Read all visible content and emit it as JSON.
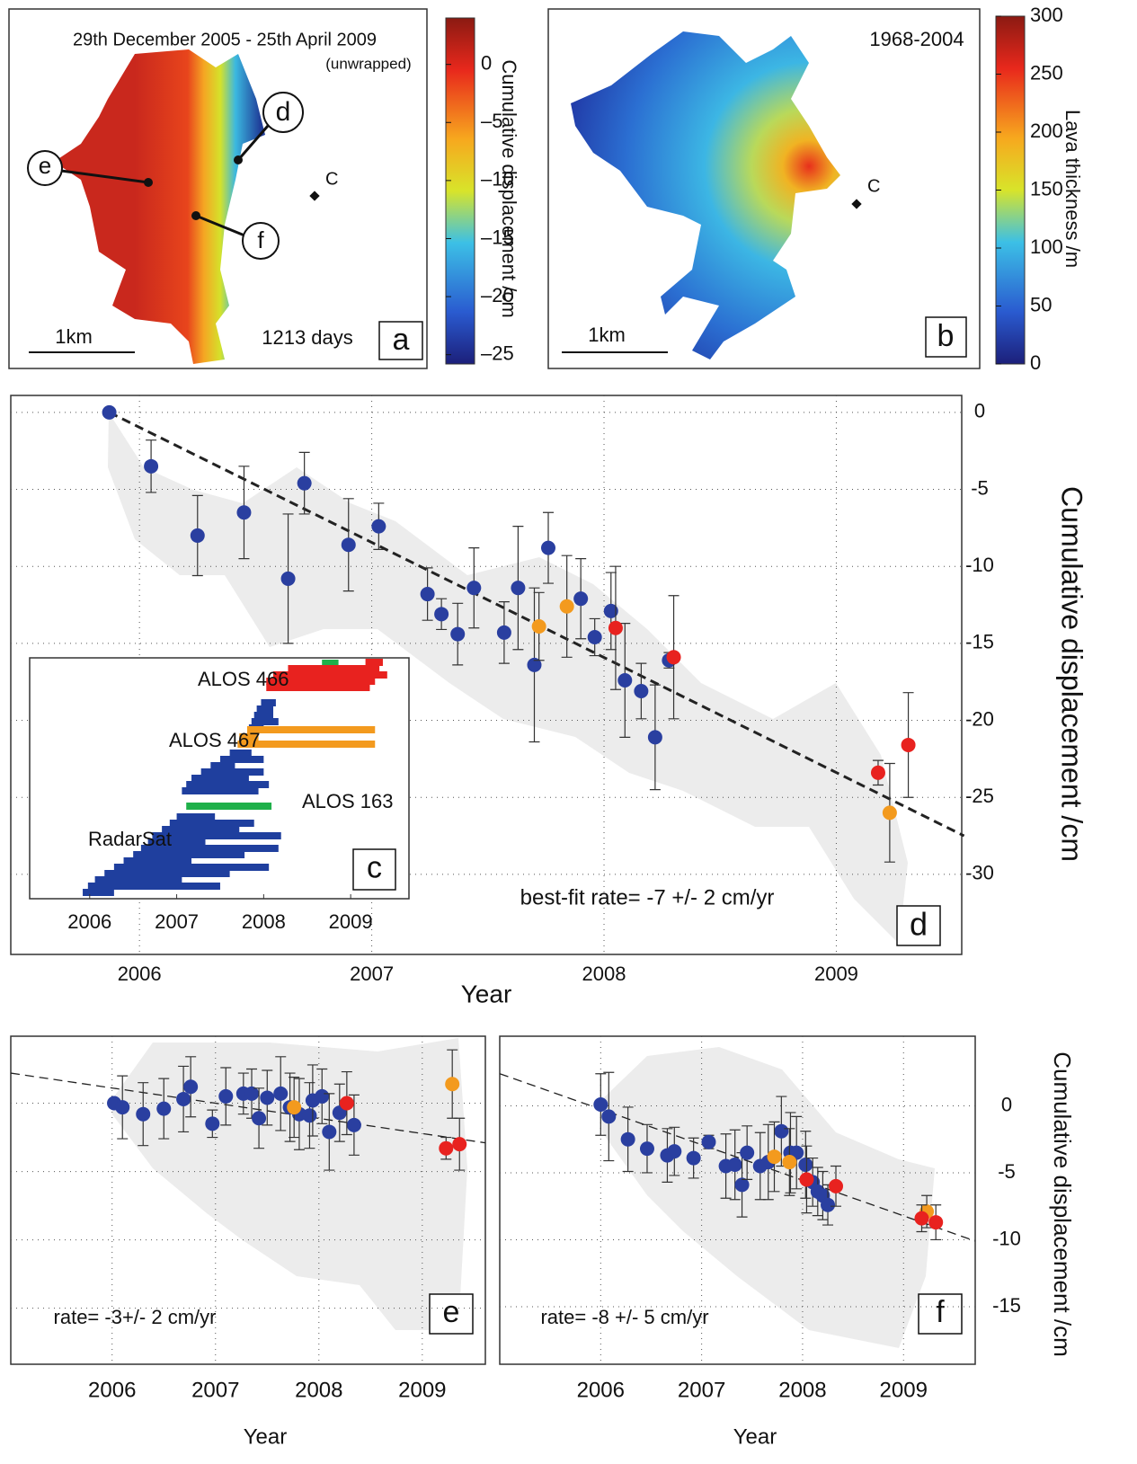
{
  "chart_data": [
    {
      "type": "map",
      "panel": "a",
      "title": "29th December 2005 -  25th April 2009",
      "subtitle": "(unwrapped)",
      "annotation": "1213 days",
      "scale_bar": "1km",
      "point_label": "C",
      "markers": [
        "d",
        "e",
        "f"
      ],
      "colorbar": {
        "label": "Cumulative displacement /cm",
        "lim": [
          -25.8,
          4
        ],
        "colormap": "jet",
        "ticks": [
          0,
          {
            "value": -5,
            "label": "–5"
          },
          {
            "value": -10,
            "label": "–10"
          },
          {
            "value": -15,
            "label": "–15"
          },
          {
            "value": -20,
            "label": "–20"
          },
          {
            "value": -25,
            "label": "–25"
          }
        ]
      }
    },
    {
      "type": "map",
      "panel": "b",
      "title": "1968-2004",
      "scale_bar": "1km",
      "point_label": "C",
      "colorbar": {
        "label": "Lava thickness /m",
        "lim": [
          0,
          300
        ],
        "colormap": "jet",
        "ticks": [
          0,
          50,
          100,
          150,
          200,
          250,
          300
        ]
      }
    },
    {
      "type": "timeline",
      "panel": "c",
      "xlim": [
        2005.31,
        2009.67
      ],
      "xticks": [
        2006,
        2007,
        2008,
        2009
      ],
      "series": [
        {
          "name": "RadarSat",
          "color": "#1f3f9e",
          "start": [
            2005.92,
            2005.98,
            2006.06,
            2006.17,
            2006.28,
            2006.39,
            2006.5,
            2006.59,
            2006.67,
            2006.72,
            2006.83,
            2006.92,
            2007.0,
            2007.06,
            2007.11,
            2007.17,
            2007.28,
            2007.39,
            2007.5,
            2007.61,
            2007.83,
            2007.86,
            2007.89,
            2007.92,
            2007.97
          ],
          "end": [
            2006.28,
            2007.5,
            2007.06,
            2007.61,
            2008.06,
            2007.17,
            2007.78,
            2008.17,
            2007.33,
            2008.2,
            2007.72,
            2007.89,
            2007.44,
            2007.94,
            2008.06,
            2007.83,
            2008.0,
            2007.67,
            2008.0,
            2007.86,
            2008.0,
            2008.17,
            2008.11,
            2008.11,
            2008.14
          ]
        },
        {
          "name": "ALOS 163",
          "color": "#1fb04a",
          "start": [
            2007.11,
            2008.67
          ],
          "end": [
            2008.09,
            2008.86
          ]
        },
        {
          "name": "ALOS 467",
          "color": "#f39a1e",
          "start": [
            2007.81,
            2007.72,
            2007.7
          ],
          "end": [
            2009.28,
            2007.94,
            2009.28
          ]
        },
        {
          "name": "ALOS 466",
          "color": "#e8221f",
          "start": [
            2009.17,
            2008.28,
            2008.11,
            2008.03,
            2008.03
          ],
          "end": [
            2009.37,
            2009.33,
            2009.42,
            2009.28,
            2009.22
          ]
        }
      ]
    },
    {
      "type": "errorbar",
      "panel": "d",
      "xlabel": "Year",
      "ylabel": "Cumulative displacement /cm",
      "annotation": "best-fit rate= -7 +/- 2  cm/yr",
      "xlim": [
        2005.446,
        2009.54
      ],
      "ylim": [
        -35.2,
        1.1
      ],
      "xticks": [
        2006,
        2007,
        2008,
        2009
      ],
      "yticks": [
        0,
        -5,
        -10,
        -15,
        -20,
        -25,
        -30
      ],
      "grid": true,
      "ytick_labels": true,
      "fit": {
        "x": [
          2005.87,
          2009.55
        ],
        "values": [
          0,
          -27.5
        ]
      },
      "series": [
        {
          "color": "#2a3fa0",
          "x": [
            2005.87,
            2006.05,
            2006.25,
            2006.45,
            2006.64,
            2006.71,
            2006.9,
            2007.03,
            2007.24,
            2007.3,
            2007.37,
            2007.44,
            2007.57,
            2007.63,
            2007.7,
            2007.76,
            2007.9,
            2007.96,
            2008.03,
            2008.09,
            2008.16,
            2008.22,
            2008.28
          ],
          "values": [
            0,
            -3.5,
            -8,
            -6.5,
            -10.8,
            -4.6,
            -8.6,
            -7.4,
            -11.8,
            -13.1,
            -14.4,
            -11.4,
            -14.3,
            -11.4,
            -16.4,
            -8.8,
            -12.1,
            -14.6,
            -12.9,
            -17.4,
            -18.1,
            -21.1,
            -16.1
          ],
          "errors": [
            0,
            1.7,
            2.6,
            3,
            4.2,
            2,
            3,
            1.5,
            1.7,
            1,
            2,
            2.6,
            2,
            4,
            5,
            2.3,
            2.6,
            1.2,
            2.5,
            3.7,
            1.8,
            3.4,
            0.5
          ]
        },
        {
          "color": "#f39a1e",
          "x": [
            2007.72,
            2007.84,
            2009.23
          ],
          "values": [
            -13.9,
            -12.6,
            -26
          ],
          "errors": [
            2.2,
            3.3,
            3.2
          ]
        },
        {
          "color": "#e8221f",
          "x": [
            2008.05,
            2008.3,
            2009.18,
            2009.31
          ],
          "values": [
            -14,
            -15.9,
            -23.4,
            -21.6
          ],
          "errors": [
            4,
            4,
            0.8,
            3.4
          ]
        }
      ]
    },
    {
      "type": "errorbar",
      "panel": "e",
      "xlabel": "Year",
      "annotation": "rate= -3+/- 2 cm/yr",
      "xlim": [
        2005.02,
        2009.61
      ],
      "ylim": [
        -19.1,
        4.9
      ],
      "xticks": [
        2006,
        2007,
        2008,
        2009
      ],
      "yticks": [
        0,
        -5,
        -10,
        -15
      ],
      "grid": true,
      "ytick_labels": false,
      "fit": {
        "x": [
          2005.02,
          2009.61
        ],
        "values": [
          2.2,
          -2.9
        ]
      },
      "series": [
        {
          "color": "#2a3fa0",
          "x": [
            2006.02,
            2006.1,
            2006.3,
            2006.5,
            2006.69,
            2006.76,
            2006.97,
            2007.1,
            2007.27,
            2007.35,
            2007.42,
            2007.5,
            2007.63,
            2007.72,
            2007.81,
            2007.91,
            2007.94,
            2008.03,
            2008.1,
            2008.2,
            2008.34
          ],
          "values": [
            0,
            -0.3,
            -0.8,
            -0.4,
            0.3,
            1.2,
            -1.5,
            0.5,
            0.7,
            0.7,
            -1.1,
            0.4,
            0.7,
            -0.3,
            -0.8,
            -0.9,
            0.2,
            0.5,
            -2.1,
            -0.7,
            -1.6
          ],
          "errors": [
            0.3,
            2.3,
            2.3,
            2.2,
            2.4,
            2.2,
            1,
            2.1,
            1.5,
            1.8,
            2.2,
            2,
            2.7,
            2.5,
            2.6,
            2.4,
            2.6,
            2,
            2.8,
            2.1,
            2.2
          ]
        },
        {
          "color": "#f39a1e",
          "x": [
            2007.76,
            2009.29
          ],
          "values": [
            -0.3,
            1.4
          ],
          "errors": [
            2.2,
            2.5
          ]
        },
        {
          "color": "#e8221f",
          "x": [
            2008.27,
            2009.23,
            2009.36
          ],
          "values": [
            0,
            -3.3,
            -3
          ],
          "errors": [
            2.3,
            0.8,
            1.9
          ]
        }
      ]
    },
    {
      "type": "errorbar",
      "panel": "f",
      "xlabel": "Year",
      "ylabel": "Cumulative displacement /cm",
      "annotation": "rate= -8 +/- 5  cm/yr",
      "xlim": [
        2005.0,
        2009.71
      ],
      "ylim": [
        -19.3,
        5.2
      ],
      "xticks": [
        2006,
        2007,
        2008,
        2009
      ],
      "yticks": [
        0,
        -5,
        -10,
        -15
      ],
      "grid": true,
      "ytick_labels": true,
      "fit": {
        "x": [
          2005.0,
          2009.71
        ],
        "values": [
          2.4,
          -10.1
        ]
      },
      "series": [
        {
          "color": "#2a3fa0",
          "x": [
            2006.0,
            2006.08,
            2006.27,
            2006.46,
            2006.66,
            2006.73,
            2006.92,
            2007.07,
            2007.24,
            2007.33,
            2007.4,
            2007.45,
            2007.58,
            2007.66,
            2007.79,
            2007.88,
            2007.94,
            2008.03,
            2008.1,
            2008.15,
            2008.2,
            2008.25
          ],
          "values": [
            0.1,
            -0.8,
            -2.5,
            -3.2,
            -3.7,
            -3.4,
            -3.9,
            -2.7,
            -4.5,
            -4.4,
            -5.9,
            -3.5,
            -4.5,
            -4.2,
            -1.9,
            -3.5,
            -3.5,
            -4.4,
            -5.7,
            -6.4,
            -6.7,
            -7.4
          ],
          "errors": [
            2.3,
            3.3,
            2.4,
            1.8,
            2,
            1.8,
            1.5,
            0.5,
            2.4,
            2.6,
            2.4,
            2,
            2.5,
            2.8,
            2.6,
            3,
            2.7,
            2.5,
            1.8,
            1.8,
            1.8,
            1.5
          ]
        },
        {
          "color": "#f39a1e",
          "x": [
            2007.72,
            2007.87,
            2009.23
          ],
          "values": [
            -3.8,
            -4.2,
            -7.9
          ],
          "errors": [
            2.6,
            2.5,
            1.2
          ]
        },
        {
          "color": "#e8221f",
          "x": [
            2008.04,
            2008.33,
            2009.18,
            2009.32
          ],
          "values": [
            -5.5,
            -6,
            -8.4,
            -8.7
          ],
          "errors": [
            2.5,
            1.5,
            1,
            1.3
          ]
        }
      ]
    }
  ]
}
